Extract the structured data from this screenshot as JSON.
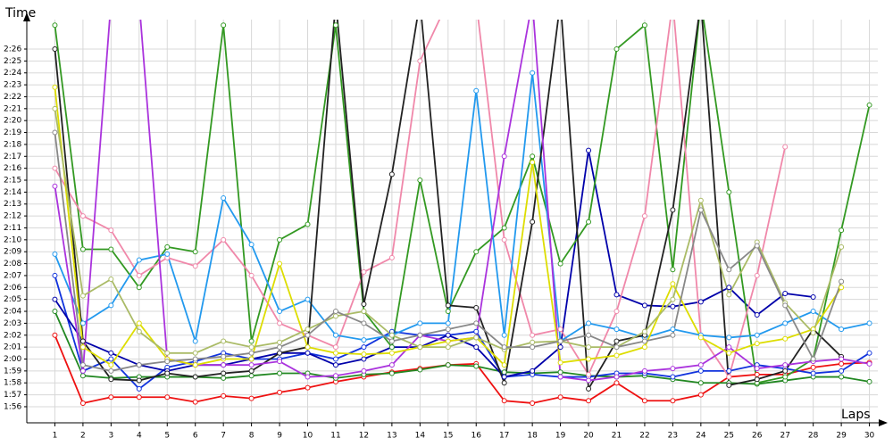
{
  "chart_data": {
    "type": "line",
    "y_label": "Time",
    "x_label": "Laps",
    "grid": true,
    "xlim": [
      0,
      30.3
    ],
    "ylim": [
      114.65,
      147.87
    ],
    "xticks": [
      1,
      2,
      3,
      4,
      5,
      6,
      7,
      8,
      9,
      10,
      11,
      12,
      13,
      14,
      15,
      16,
      17,
      18,
      19,
      20,
      21,
      22,
      23,
      24,
      25,
      26,
      27,
      28,
      29,
      30
    ],
    "yticks": [
      {
        "value": 116,
        "label": "1:56"
      },
      {
        "value": 117,
        "label": "1:57"
      },
      {
        "value": 118,
        "label": "1:58"
      },
      {
        "value": 119,
        "label": "1:59"
      },
      {
        "value": 120,
        "label": "2:00"
      },
      {
        "value": 121,
        "label": "2:01"
      },
      {
        "value": 122,
        "label": "2:02"
      },
      {
        "value": 123,
        "label": "2:03"
      },
      {
        "value": 124,
        "label": "2:04"
      },
      {
        "value": 125,
        "label": "2:05"
      },
      {
        "value": 126,
        "label": "2:06"
      },
      {
        "value": 127,
        "label": "2:07"
      },
      {
        "value": 128,
        "label": "2:08"
      },
      {
        "value": 129,
        "label": "2:09"
      },
      {
        "value": 130,
        "label": "2:10"
      },
      {
        "value": 131,
        "label": "2:11"
      },
      {
        "value": 132,
        "label": "2:12"
      },
      {
        "value": 133,
        "label": "2:13"
      },
      {
        "value": 134,
        "label": "2:14"
      },
      {
        "value": 135,
        "label": "2:15"
      },
      {
        "value": 136,
        "label": "2:16"
      },
      {
        "value": 137,
        "label": "2:17"
      },
      {
        "value": 138,
        "label": "2:18"
      },
      {
        "value": 139,
        "label": "2:19"
      },
      {
        "value": 140,
        "label": "2:20"
      },
      {
        "value": 141,
        "label": "2:21"
      },
      {
        "value": 142,
        "label": "2:22"
      },
      {
        "value": 143,
        "label": "2:23"
      },
      {
        "value": 144,
        "label": "2:24"
      },
      {
        "value": 145,
        "label": "2:25"
      },
      {
        "value": 146,
        "label": "2:26"
      }
    ],
    "x": [
      1,
      2,
      3,
      4,
      5,
      6,
      7,
      8,
      9,
      10,
      11,
      12,
      13,
      14,
      15,
      16,
      17,
      18,
      19,
      20,
      21,
      22,
      23,
      24,
      25,
      26,
      27,
      28,
      29,
      30
    ],
    "series": [
      {
        "color": "#ee1111",
        "values": [
          122,
          116.3,
          116.8,
          116.8,
          116.8,
          116.4,
          116.9,
          116.7,
          117.2,
          117.6,
          118.1,
          118.5,
          118.9,
          119.2,
          119.5,
          119.6,
          116.5,
          116.3,
          116.8,
          116.5,
          118,
          116.5,
          116.5,
          117,
          118.5,
          118.7,
          118.7,
          119.3,
          119.6,
          119.7
        ]
      },
      {
        "color": "#228822",
        "values": [
          124,
          118.6,
          118.4,
          118.5,
          118.5,
          118.5,
          118.4,
          118.6,
          118.8,
          118.8,
          118.4,
          118.7,
          118.8,
          119.1,
          119.5,
          119.4,
          118.9,
          118.8,
          118.9,
          118.6,
          118.5,
          118.6,
          118.3,
          118,
          118,
          117.9,
          118.2,
          118.5,
          118.5,
          118.1
        ]
      },
      {
        "color": "#1133dd",
        "values": [
          127,
          119,
          120,
          117.5,
          119.3,
          119.8,
          120.5,
          120,
          120,
          120.5,
          120,
          121,
          122.3,
          122,
          122,
          122.3,
          118.5,
          118.7,
          118.5,
          118.5,
          118.8,
          118.8,
          118.5,
          119,
          119,
          119.5,
          119.2,
          118.8,
          119,
          120.5
        ]
      },
      {
        "color": "#0000aa",
        "values": [
          125,
          121.5,
          120.5,
          119.5,
          119,
          119.5,
          119.5,
          120,
          120.5,
          120.5,
          119.5,
          120,
          121,
          121,
          122,
          121,
          118.5,
          119,
          121,
          137.5,
          125.4,
          124.5,
          124.4,
          124.8,
          126,
          123.7,
          125.5,
          125.2,
          null,
          null
        ]
      },
      {
        "color": "#339922",
        "values": [
          148,
          129.2,
          129.2,
          126,
          129.4,
          129,
          148,
          121.5,
          130,
          131.3,
          148,
          124,
          121,
          135,
          124,
          129,
          131,
          137,
          128,
          131.5,
          146,
          148,
          127.5,
          150,
          134,
          118,
          118.5,
          120,
          130.8,
          141.3
        ]
      },
      {
        "color": "#f088aa",
        "values": [
          136,
          132,
          130.8,
          127,
          128.5,
          127.8,
          130,
          127,
          123,
          122,
          121,
          127.3,
          128.5,
          145,
          150,
          150,
          130,
          122,
          122.5,
          118.7,
          124,
          132,
          150,
          122,
          118.5,
          127,
          137.8,
          null,
          null,
          null
        ]
      },
      {
        "color": "#2299ee",
        "values": [
          128.8,
          123,
          124.5,
          128.3,
          128.8,
          121.5,
          133.5,
          129.6,
          124,
          125,
          122,
          121.6,
          122,
          123,
          123,
          142.5,
          122,
          144,
          121.5,
          123,
          122.5,
          121.8,
          122.5,
          122,
          121.8,
          122,
          123,
          124,
          122.5,
          123
        ]
      },
      {
        "color": "#222222",
        "values": [
          146,
          121.5,
          118.3,
          118.2,
          118.8,
          118.5,
          118.8,
          119,
          120.5,
          121,
          150,
          124.6,
          135.5,
          150,
          124.5,
          124.3,
          118,
          131.5,
          150,
          117.5,
          121.5,
          122,
          132.5,
          150,
          117.8,
          118.3,
          119,
          122.5,
          120.2,
          null
        ]
      },
      {
        "color": "#aa33dd",
        "values": [
          134.5,
          119,
          150,
          150,
          120,
          119.5,
          119.5,
          119.5,
          119.8,
          118.5,
          118.6,
          119,
          119.5,
          122,
          121.5,
          121.8,
          137,
          150,
          118.5,
          118.2,
          118.5,
          119,
          119.2,
          119.5,
          121,
          119.2,
          119.5,
          119.8,
          120,
          119.6
        ]
      },
      {
        "color": "#dddd00",
        "values": [
          142.8,
          121,
          119.5,
          123,
          120,
          119.5,
          120,
          120,
          128,
          121,
          120.5,
          120.4,
          120.5,
          121,
          121.5,
          121.8,
          119.5,
          136.5,
          119.7,
          120,
          120.3,
          121,
          126.3,
          121.8,
          120.5,
          121.3,
          121.7,
          122.5,
          126,
          null
        ]
      },
      {
        "color": "#aabb66",
        "values": [
          141,
          125.3,
          126.7,
          122.3,
          120.5,
          120.5,
          121.5,
          121,
          121.4,
          122.5,
          123.6,
          124,
          122,
          121,
          121,
          121.8,
          120.8,
          121.4,
          121.5,
          121,
          121,
          122.3,
          125,
          133.3,
          125.4,
          129.8,
          124.7,
          122.2,
          129.4,
          null
        ]
      },
      {
        "color": "#888888",
        "values": [
          139,
          119.5,
          119,
          119.5,
          119.8,
          120,
          120.2,
          120.5,
          121,
          122,
          124,
          123,
          121.5,
          122,
          122.5,
          123,
          121,
          121,
          121.5,
          122,
          121,
          121.5,
          122,
          132.5,
          127.5,
          129.5,
          124.5,
          120,
          126.5,
          null
        ]
      }
    ]
  }
}
